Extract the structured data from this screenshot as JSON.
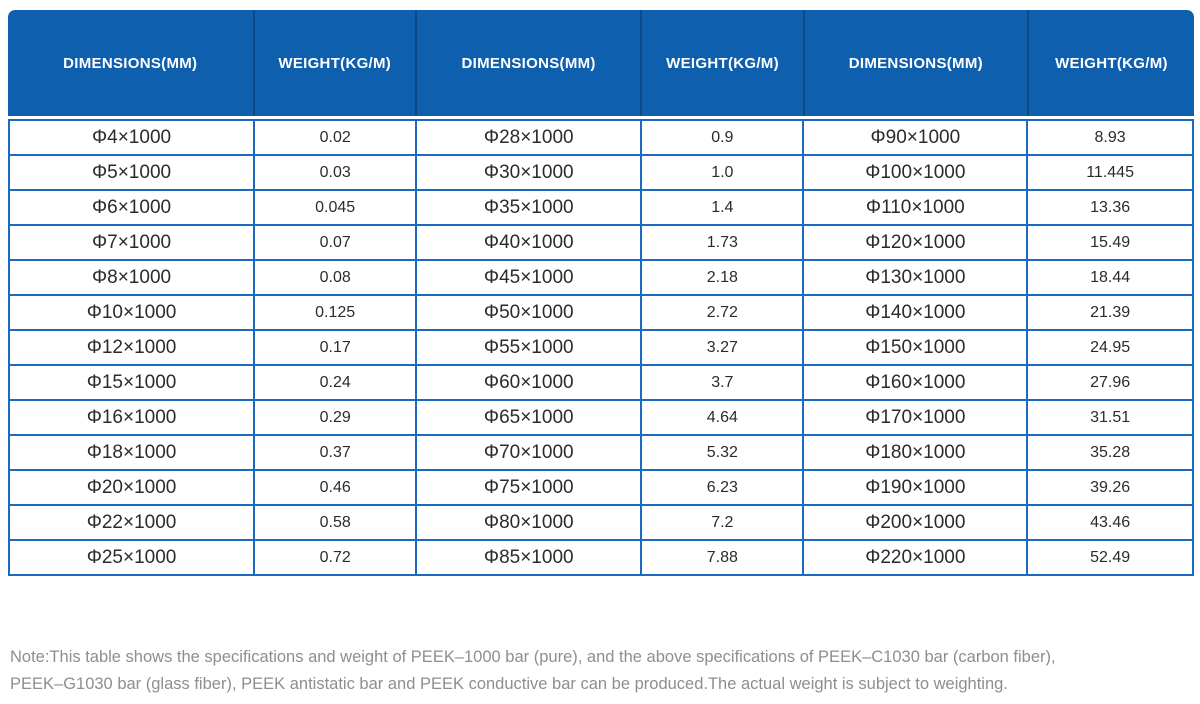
{
  "table": {
    "columns": [
      "DIMENSIONS(MM)",
      "WEIGHT(KG/M)",
      "DIMENSIONS(MM)",
      "WEIGHT(KG/M)",
      "DIMENSIONS(MM)",
      "WEIGHT(KG/M)"
    ],
    "rows": [
      [
        "Φ4×1000",
        "0.02",
        "Φ28×1000",
        "0.9",
        "Φ90×1000",
        "8.93"
      ],
      [
        "Φ5×1000",
        "0.03",
        "Φ30×1000",
        "1.0",
        "Φ100×1000",
        "11.445"
      ],
      [
        "Φ6×1000",
        "0.045",
        "Φ35×1000",
        "1.4",
        "Φ110×1000",
        "13.36"
      ],
      [
        "Φ7×1000",
        "0.07",
        "Φ40×1000",
        "1.73",
        "Φ120×1000",
        "15.49"
      ],
      [
        "Φ8×1000",
        "0.08",
        "Φ45×1000",
        "2.18",
        "Φ130×1000",
        "18.44"
      ],
      [
        "Φ10×1000",
        "0.125",
        "Φ50×1000",
        "2.72",
        "Φ140×1000",
        "21.39"
      ],
      [
        "Φ12×1000",
        "0.17",
        "Φ55×1000",
        "3.27",
        "Φ150×1000",
        "24.95"
      ],
      [
        "Φ15×1000",
        "0.24",
        "Φ60×1000",
        "3.7",
        "Φ160×1000",
        "27.96"
      ],
      [
        "Φ16×1000",
        "0.29",
        "Φ65×1000",
        "4.64",
        "Φ170×1000",
        "31.51"
      ],
      [
        "Φ18×1000",
        "0.37",
        "Φ70×1000",
        "5.32",
        "Φ180×1000",
        "35.28"
      ],
      [
        "Φ20×1000",
        "0.46",
        "Φ75×1000",
        "6.23",
        "Φ190×1000",
        "39.26"
      ],
      [
        "Φ22×1000",
        "0.58",
        "Φ80×1000",
        "7.2",
        "Φ200×1000",
        "43.46"
      ],
      [
        "Φ25×1000",
        "0.72",
        "Φ85×1000",
        "7.88",
        "Φ220×1000",
        "52.49"
      ]
    ]
  },
  "note": {
    "line1": "Note:This table shows the specifications and weight of PEEK–1000 bar (pure), and the above specifications of PEEK–C1030 bar (carbon fiber),",
    "line2": "PEEK–G1030 bar (glass fiber), PEEK antistatic bar and PEEK conductive bar can be produced.The actual weight is subject to weighting."
  },
  "colors": {
    "header_bg": "#0e5fad",
    "header_divider": "#0a4a86",
    "body_border": "#1a6bbf",
    "body_text": "#2b2b2b",
    "note_text": "#8e8e8e"
  }
}
